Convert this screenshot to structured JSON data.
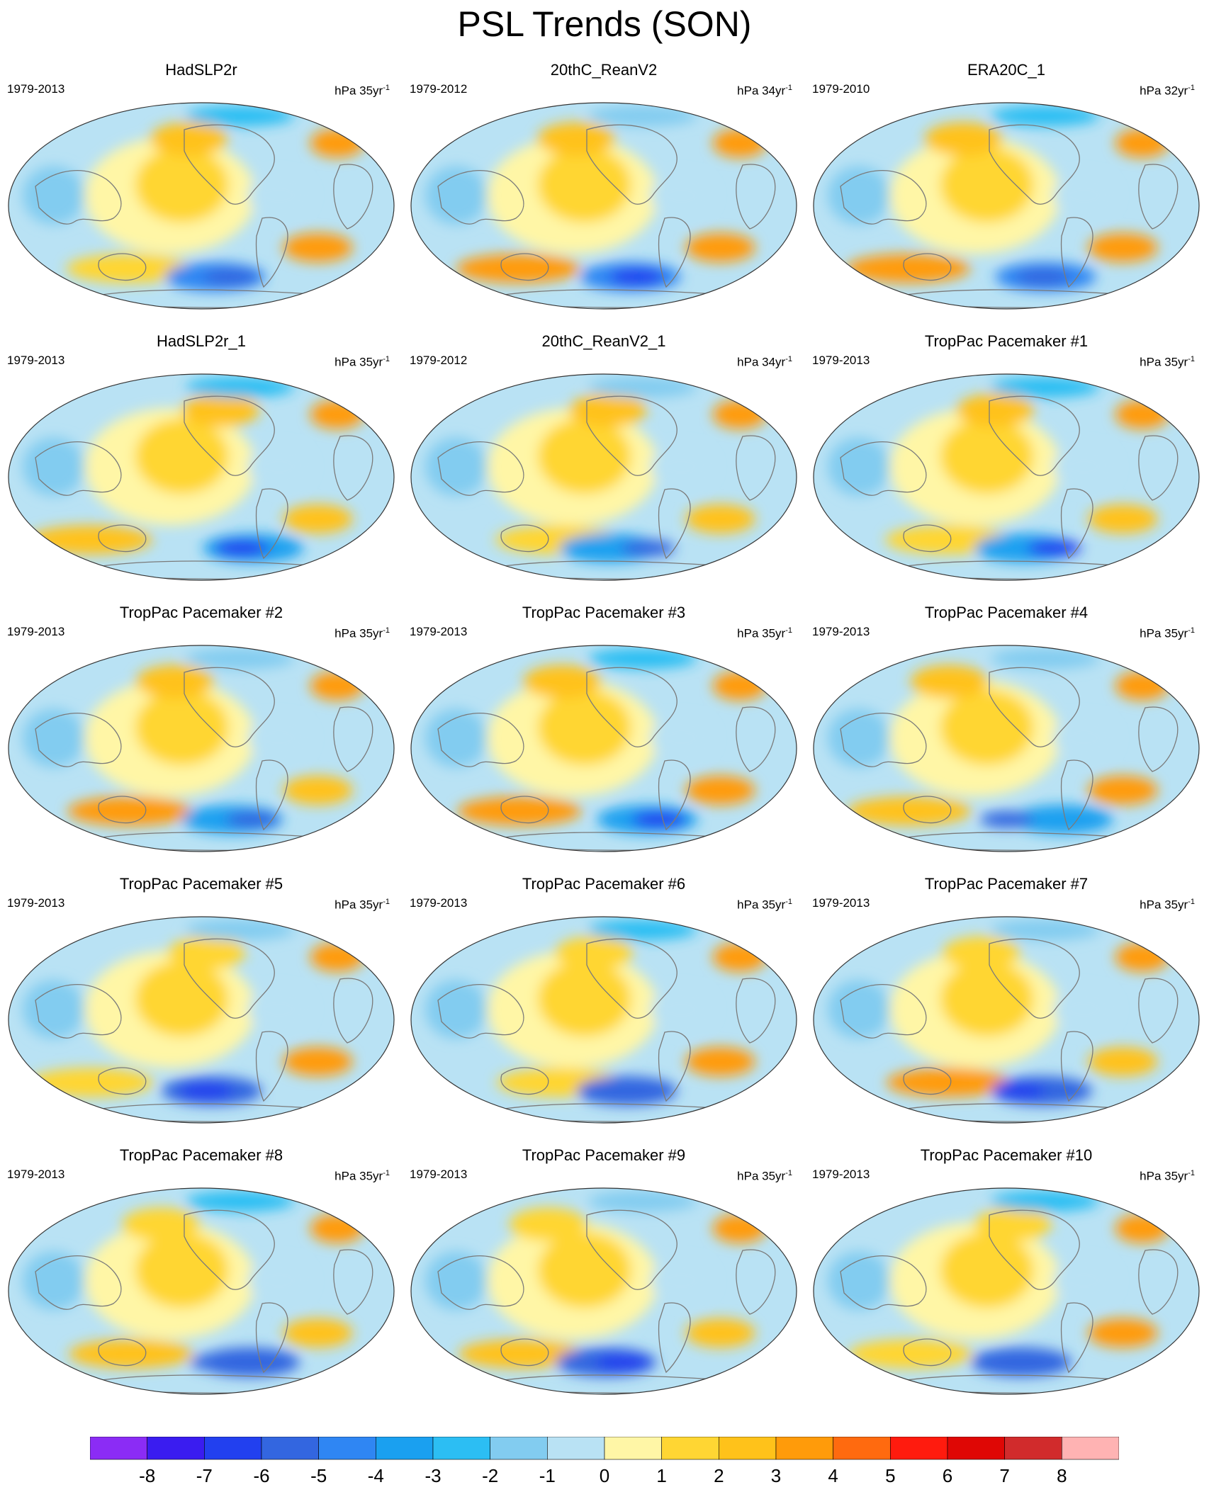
{
  "page": {
    "title": "PSL Trends (SON)"
  },
  "chart_data": [
    {
      "type": "heatmap",
      "title": "HadSLP2r",
      "period": "1979-2013",
      "units_base": "hPa 35yr",
      "units_exp": "-1",
      "colorbar_shared": true
    },
    {
      "type": "heatmap",
      "title": "20thC_ReanV2",
      "period": "1979-2012",
      "units_base": "hPa 34yr",
      "units_exp": "-1",
      "colorbar_shared": true
    },
    {
      "type": "heatmap",
      "title": "ERA20C_1",
      "period": "1979-2010",
      "units_base": "hPa 32yr",
      "units_exp": "-1",
      "colorbar_shared": true
    },
    {
      "type": "heatmap",
      "title": "HadSLP2r_1",
      "period": "1979-2013",
      "units_base": "hPa 35yr",
      "units_exp": "-1",
      "colorbar_shared": true
    },
    {
      "type": "heatmap",
      "title": "20thC_ReanV2_1",
      "period": "1979-2012",
      "units_base": "hPa 34yr",
      "units_exp": "-1",
      "colorbar_shared": true
    },
    {
      "type": "heatmap",
      "title": "TropPac Pacemaker #1",
      "period": "1979-2013",
      "units_base": "hPa 35yr",
      "units_exp": "-1",
      "colorbar_shared": true
    },
    {
      "type": "heatmap",
      "title": "TropPac Pacemaker #2",
      "period": "1979-2013",
      "units_base": "hPa 35yr",
      "units_exp": "-1",
      "colorbar_shared": true
    },
    {
      "type": "heatmap",
      "title": "TropPac Pacemaker #3",
      "period": "1979-2013",
      "units_base": "hPa 35yr",
      "units_exp": "-1",
      "colorbar_shared": true
    },
    {
      "type": "heatmap",
      "title": "TropPac Pacemaker #4",
      "period": "1979-2013",
      "units_base": "hPa 35yr",
      "units_exp": "-1",
      "colorbar_shared": true
    },
    {
      "type": "heatmap",
      "title": "TropPac Pacemaker #5",
      "period": "1979-2013",
      "units_base": "hPa 35yr",
      "units_exp": "-1",
      "colorbar_shared": true
    },
    {
      "type": "heatmap",
      "title": "TropPac Pacemaker #6",
      "period": "1979-2013",
      "units_base": "hPa 35yr",
      "units_exp": "-1",
      "colorbar_shared": true
    },
    {
      "type": "heatmap",
      "title": "TropPac Pacemaker #7",
      "period": "1979-2013",
      "units_base": "hPa 35yr",
      "units_exp": "-1",
      "colorbar_shared": true
    },
    {
      "type": "heatmap",
      "title": "TropPac Pacemaker #8",
      "period": "1979-2013",
      "units_base": "hPa 35yr",
      "units_exp": "-1",
      "colorbar_shared": true
    },
    {
      "type": "heatmap",
      "title": "TropPac Pacemaker #9",
      "period": "1979-2013",
      "units_base": "hPa 35yr",
      "units_exp": "-1",
      "colorbar_shared": true
    },
    {
      "type": "heatmap",
      "title": "TropPac Pacemaker #10",
      "period": "1979-2013",
      "units_base": "hPa 35yr",
      "units_exp": "-1",
      "colorbar_shared": true
    }
  ],
  "colorbar": {
    "tick_labels": [
      "-8",
      "-7",
      "-6",
      "-5",
      "-4",
      "-3",
      "-2",
      "-1",
      "0",
      "1",
      "2",
      "3",
      "4",
      "5",
      "6",
      "7",
      "8"
    ],
    "colors": [
      "#8b2cf5",
      "#3a1cf0",
      "#2240ef",
      "#3366e0",
      "#2f86f3",
      "#1aa0f0",
      "#2cbef3",
      "#82ccf0",
      "#b9e2f4",
      "#fff6a6",
      "#ffd633",
      "#ffc21a",
      "#ff9b0a",
      "#ff6a0f",
      "#ff1b0e",
      "#df0705",
      "#d12b2c",
      "#ffb3b3"
    ]
  },
  "colors": {
    "land_outline": "#7a7a7a",
    "map_border": "#333333"
  }
}
